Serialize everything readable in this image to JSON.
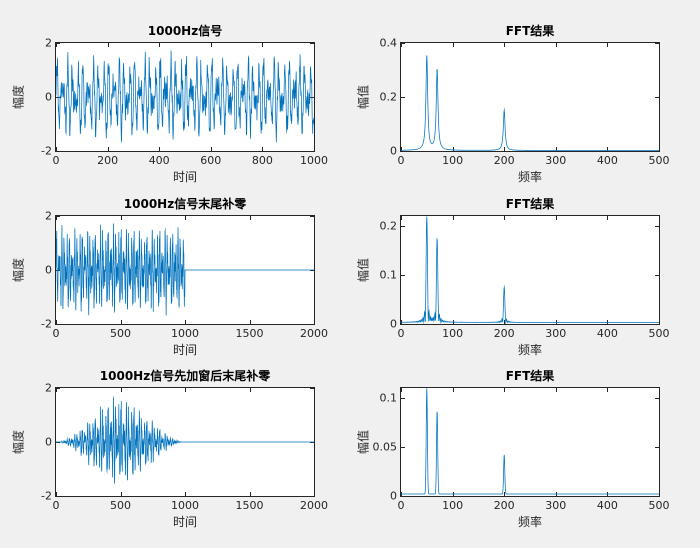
{
  "figure": {
    "background": "#f0f0f0",
    "plot_background": "#ffffff",
    "line_color": "#0072bd",
    "axis_color": "#262626",
    "title_color": "#000000"
  },
  "chart_data": [
    {
      "id": "time-signal-original",
      "type": "line",
      "title": "1000Hz信号",
      "xlabel": "时间",
      "ylabel": "幅度",
      "xlim": [
        0,
        1000
      ],
      "ylim": [
        -2,
        2
      ],
      "xticks": [
        0,
        200,
        400,
        600,
        800,
        1000
      ],
      "yticks": [
        -2,
        0,
        2
      ],
      "grid": false,
      "legend": null,
      "series": {
        "kind": "signal",
        "fs": 1000,
        "n": 1000,
        "pad_to": 1000,
        "window": "none",
        "noise": 0.18,
        "seed": 11,
        "components": [
          {
            "freq": 50,
            "amp": 0.7
          },
          {
            "freq": 70,
            "amp": 0.6
          },
          {
            "freq": 200,
            "amp": 0.3
          }
        ]
      }
    },
    {
      "id": "fft-original",
      "type": "line",
      "title": "FFT结果",
      "xlabel": "频率",
      "ylabel": "幅值",
      "xlim": [
        0,
        500
      ],
      "ylim": [
        0,
        0.4
      ],
      "xticks": [
        0,
        100,
        200,
        300,
        400,
        500
      ],
      "yticks": [
        0,
        0.2,
        0.4
      ],
      "grid": false,
      "legend": null,
      "series": {
        "kind": "spectrum",
        "kernel": "lorentz",
        "peak_width": 2,
        "floor": 0.002,
        "peaks": [
          {
            "freq": 50,
            "mag": 0.35
          },
          {
            "freq": 70,
            "mag": 0.3
          },
          {
            "freq": 200,
            "mag": 0.15
          }
        ]
      }
    },
    {
      "id": "time-signal-zeropad",
      "type": "line",
      "title": "1000Hz信号末尾补零",
      "xlabel": "时间",
      "ylabel": "幅度",
      "xlim": [
        0,
        2000
      ],
      "ylim": [
        -2,
        2
      ],
      "xticks": [
        0,
        500,
        1000,
        1500,
        2000
      ],
      "yticks": [
        -2,
        0,
        2
      ],
      "grid": false,
      "legend": null,
      "series": {
        "kind": "signal",
        "fs": 1000,
        "n": 1000,
        "pad_to": 2000,
        "window": "none",
        "noise": 0.18,
        "seed": 11,
        "components": [
          {
            "freq": 50,
            "amp": 0.7
          },
          {
            "freq": 70,
            "amp": 0.6
          },
          {
            "freq": 200,
            "amp": 0.3
          }
        ]
      }
    },
    {
      "id": "fft-zeropad",
      "type": "line",
      "title": "FFT结果",
      "xlabel": "频率",
      "ylabel": "幅值",
      "xlim": [
        0,
        500
      ],
      "ylim": [
        0,
        0.22
      ],
      "xticks": [
        0,
        100,
        200,
        300,
        400,
        500
      ],
      "yticks": [
        0,
        0.1,
        0.2
      ],
      "grid": false,
      "legend": null,
      "series": {
        "kind": "spectrum",
        "kernel": "sinc",
        "peak_width": 3,
        "floor": 0.003,
        "peaks": [
          {
            "freq": 50,
            "mag": 0.215
          },
          {
            "freq": 70,
            "mag": 0.17
          },
          {
            "freq": 200,
            "mag": 0.072
          }
        ]
      }
    },
    {
      "id": "time-signal-window-zeropad",
      "type": "line",
      "title": "1000Hz信号先加窗后末尾补零",
      "xlabel": "时间",
      "ylabel": "幅度",
      "xlim": [
        0,
        2000
      ],
      "ylim": [
        -2,
        2
      ],
      "xticks": [
        0,
        500,
        1000,
        1500,
        2000
      ],
      "yticks": [
        -2,
        0,
        2
      ],
      "grid": false,
      "legend": null,
      "series": {
        "kind": "signal",
        "fs": 1000,
        "n": 1000,
        "pad_to": 2000,
        "window": "hann",
        "noise": 0.18,
        "seed": 11,
        "components": [
          {
            "freq": 50,
            "amp": 0.7
          },
          {
            "freq": 70,
            "amp": 0.6
          },
          {
            "freq": 200,
            "amp": 0.3
          }
        ]
      }
    },
    {
      "id": "fft-window-zeropad",
      "type": "line",
      "title": "FFT结果",
      "xlabel": "频率",
      "ylabel": "幅值",
      "xlim": [
        0,
        500
      ],
      "ylim": [
        0,
        0.11
      ],
      "xticks": [
        0,
        100,
        200,
        300,
        400,
        500
      ],
      "yticks": [
        0,
        0.05,
        0.1
      ],
      "grid": false,
      "legend": null,
      "series": {
        "kind": "spectrum",
        "kernel": "gauss",
        "peak_width": 1.6,
        "floor": 0.002,
        "peaks": [
          {
            "freq": 50,
            "mag": 0.108
          },
          {
            "freq": 70,
            "mag": 0.085
          },
          {
            "freq": 200,
            "mag": 0.04
          }
        ]
      }
    }
  ]
}
